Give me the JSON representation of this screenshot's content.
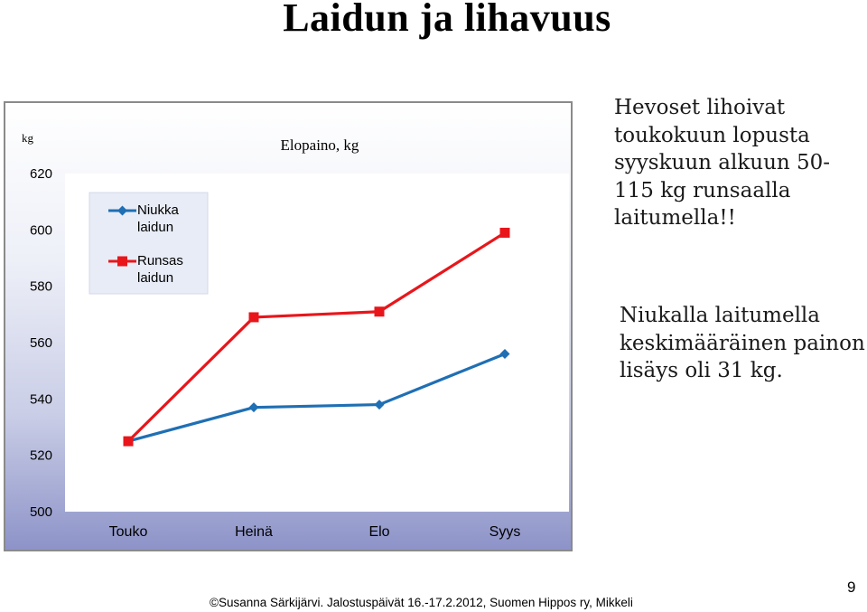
{
  "slide": {
    "title": "Laidun ja lihavuus",
    "text_block_1": "Hevoset lihoivat toukokuun lopusta syyskuun alkuun 50-115 kg runsaalla laitumella!!",
    "text_block_2": "Niukalla laitumella keskimääräinen painon lisäys oli 31 kg.",
    "footer": "©Susanna Särkijärvi. Jalostuspäivät 16.-17.2.2012, Suomen Hippos ry, Mikkeli",
    "page_number": "9"
  },
  "chart_data": {
    "type": "line",
    "title": "Elopaino, kg",
    "ylabel": "kg",
    "xlabel": "",
    "categories": [
      "Touko",
      "Heinä",
      "Elo",
      "Syys"
    ],
    "ylim": [
      500,
      620
    ],
    "yticks": [
      500,
      520,
      540,
      560,
      580,
      600,
      620
    ],
    "grid": false,
    "legend_position": "top-left",
    "series": [
      {
        "name": "Niukka laidun",
        "values": [
          525,
          537,
          538,
          556
        ],
        "color": "#1f6fb4",
        "marker": "diamond"
      },
      {
        "name": "Runsas laidun",
        "values": [
          525,
          569,
          571,
          599
        ],
        "color": "#e8161b",
        "marker": "square"
      }
    ]
  }
}
